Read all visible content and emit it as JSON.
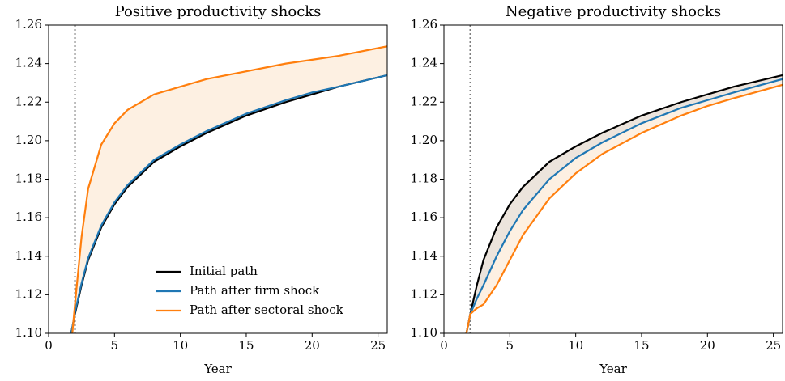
{
  "charts": [
    {
      "type": "line",
      "title": "Positive productivity shocks",
      "xlabel": "Year",
      "x": [
        1.7,
        1.8,
        2,
        2.5,
        3,
        4,
        5,
        6,
        8,
        10,
        12,
        15,
        18,
        20,
        22,
        25.7
      ],
      "xlim": [
        0,
        25.7
      ],
      "xticks": [
        0,
        5,
        10,
        15,
        20,
        25
      ],
      "ylim": [
        1.1,
        1.26
      ],
      "yticks": [
        {
          "value": 1.1,
          "label": "1.10"
        },
        1.12,
        1.14,
        1.16,
        1.18,
        {
          "value": 1.2,
          "label": "1.20"
        },
        1.22,
        1.24,
        1.26
      ],
      "vline": 2,
      "fill_color": "#fdf0e2",
      "legend": "lower right",
      "series": [
        {
          "name": "Initial path",
          "color": "#000000",
          "values": [
            1.1,
            1.103,
            1.11,
            1.125,
            1.138,
            1.155,
            1.167,
            1.176,
            1.189,
            1.197,
            1.204,
            1.213,
            1.22,
            1.224,
            1.228,
            1.234
          ]
        },
        {
          "name": "Path after firm shock",
          "color": "#1f77b4",
          "values": [
            1.1,
            1.103,
            1.111,
            1.126,
            1.139,
            1.156,
            1.168,
            1.177,
            1.19,
            1.198,
            1.205,
            1.214,
            1.221,
            1.225,
            1.228,
            1.234
          ]
        },
        {
          "name": "Path after sectoral shock",
          "color": "#ff7f0e",
          "values": [
            null,
            1.1,
            1.115,
            1.15,
            1.175,
            1.198,
            1.209,
            1.216,
            1.224,
            1.228,
            1.232,
            1.236,
            1.24,
            1.242,
            1.244,
            1.249
          ]
        }
      ]
    },
    {
      "type": "line",
      "title": "Negative productivity shocks",
      "xlabel": "Year",
      "x": [
        1.7,
        1.8,
        2,
        2.5,
        3,
        4,
        5,
        6,
        8,
        10,
        12,
        15,
        18,
        20,
        22,
        25.7
      ],
      "xlim": [
        0,
        25.7
      ],
      "xticks": [
        0,
        5,
        10,
        15,
        20,
        25
      ],
      "ylim": [
        1.1,
        1.26
      ],
      "yticks": [
        {
          "value": 1.1,
          "label": "1.10"
        },
        1.12,
        1.14,
        1.16,
        1.18,
        {
          "value": 1.2,
          "label": "1.20"
        },
        1.22,
        1.24,
        1.26
      ],
      "vline": 2,
      "fill_color": "#fdf0e2",
      "inner_fill_color": "#ece4dc",
      "series": [
        {
          "color": "#000000",
          "values": [
            1.1,
            1.103,
            1.11,
            1.125,
            1.138,
            1.155,
            1.167,
            1.176,
            1.189,
            1.197,
            1.204,
            1.213,
            1.22,
            1.224,
            1.228,
            1.234
          ]
        },
        {
          "color": "#1f77b4",
          "values": [
            1.1,
            1.103,
            1.11,
            1.118,
            1.125,
            1.14,
            1.153,
            1.164,
            1.18,
            1.191,
            1.199,
            1.209,
            1.217,
            1.221,
            1.225,
            1.232
          ]
        },
        {
          "color": "#ff7f0e",
          "values": [
            1.1,
            1.103,
            1.11,
            1.113,
            1.115,
            1.125,
            1.138,
            1.151,
            1.17,
            1.183,
            1.193,
            1.204,
            1.213,
            1.218,
            1.222,
            1.229
          ]
        }
      ]
    }
  ]
}
